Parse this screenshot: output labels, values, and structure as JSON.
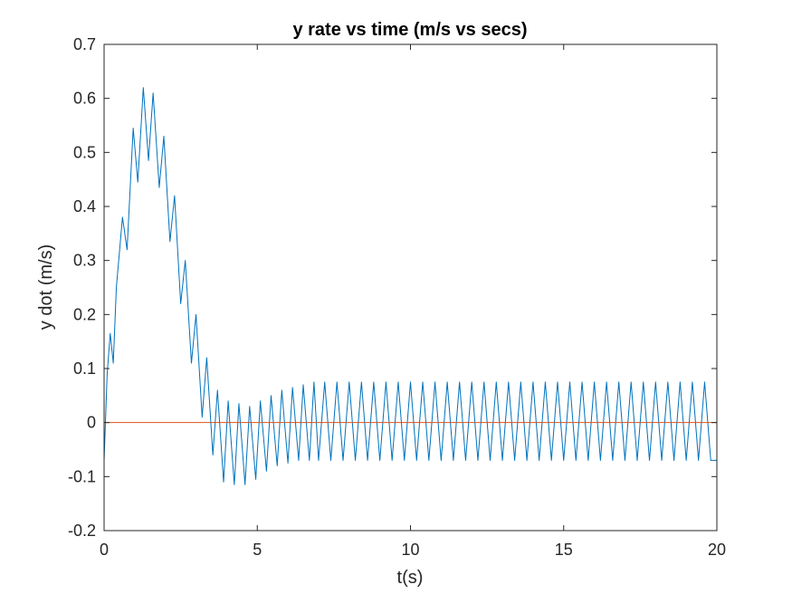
{
  "chart_data": {
    "type": "line",
    "title": "y  rate vs time (m/s vs secs)",
    "xlabel": "t(s)",
    "ylabel": "y dot (m/s)",
    "xlim": [
      0,
      20
    ],
    "ylim": [
      -0.2,
      0.7
    ],
    "xticks": [
      0,
      5,
      10,
      15,
      20
    ],
    "yticks": [
      -0.2,
      -0.1,
      0,
      0.1,
      0.2,
      0.3,
      0.4,
      0.5,
      0.6,
      0.7
    ],
    "xtick_labels": [
      "0",
      "5",
      "10",
      "15",
      "20"
    ],
    "ytick_labels": [
      "-0.2",
      "-0.1",
      "0",
      "0.1",
      "0.2",
      "0.3",
      "0.4",
      "0.5",
      "0.6",
      "0.7"
    ],
    "grid": false,
    "box": true,
    "series": [
      {
        "color": "#0072BD",
        "x": [
          0,
          0.1,
          0.2,
          0.3,
          0.4,
          0.6,
          0.75,
          0.95,
          1.1,
          1.28,
          1.45,
          1.6,
          1.8,
          1.95,
          2.15,
          2.3,
          2.5,
          2.65,
          2.85,
          3.0,
          3.2,
          3.35,
          3.55,
          3.7,
          3.9,
          4.05,
          4.25,
          4.4,
          4.6,
          4.75,
          4.95,
          5.1,
          5.3,
          5.45,
          5.65,
          5.8,
          6.0,
          6.15,
          6.35,
          6.5,
          6.7,
          6.85,
          7.0,
          7.2,
          7.4,
          7.6,
          8.0,
          10.0,
          12.0,
          14.0,
          16.0,
          18.0,
          19.8,
          20.0
        ],
        "y": [
          -0.07,
          0.09,
          0.165,
          0.11,
          0.25,
          0.38,
          0.32,
          0.545,
          0.445,
          0.62,
          0.485,
          0.61,
          0.435,
          0.53,
          0.335,
          0.42,
          0.22,
          0.3,
          0.11,
          0.2,
          0.01,
          0.12,
          -0.06,
          0.06,
          -0.11,
          0.04,
          -0.115,
          0.035,
          -0.115,
          0.03,
          -0.105,
          0.04,
          -0.09,
          0.05,
          -0.08,
          0.06,
          -0.075,
          0.065,
          -0.07,
          0.07,
          -0.07,
          0.075,
          -0.07,
          0.075,
          -0.07,
          0.075,
          0.075,
          0.075,
          0.075,
          0.075,
          0.075,
          0.075,
          0.075,
          -0.07
        ]
      },
      {
        "color": "#D95319",
        "x": [
          0,
          20
        ],
        "y": [
          0,
          0
        ]
      }
    ]
  }
}
